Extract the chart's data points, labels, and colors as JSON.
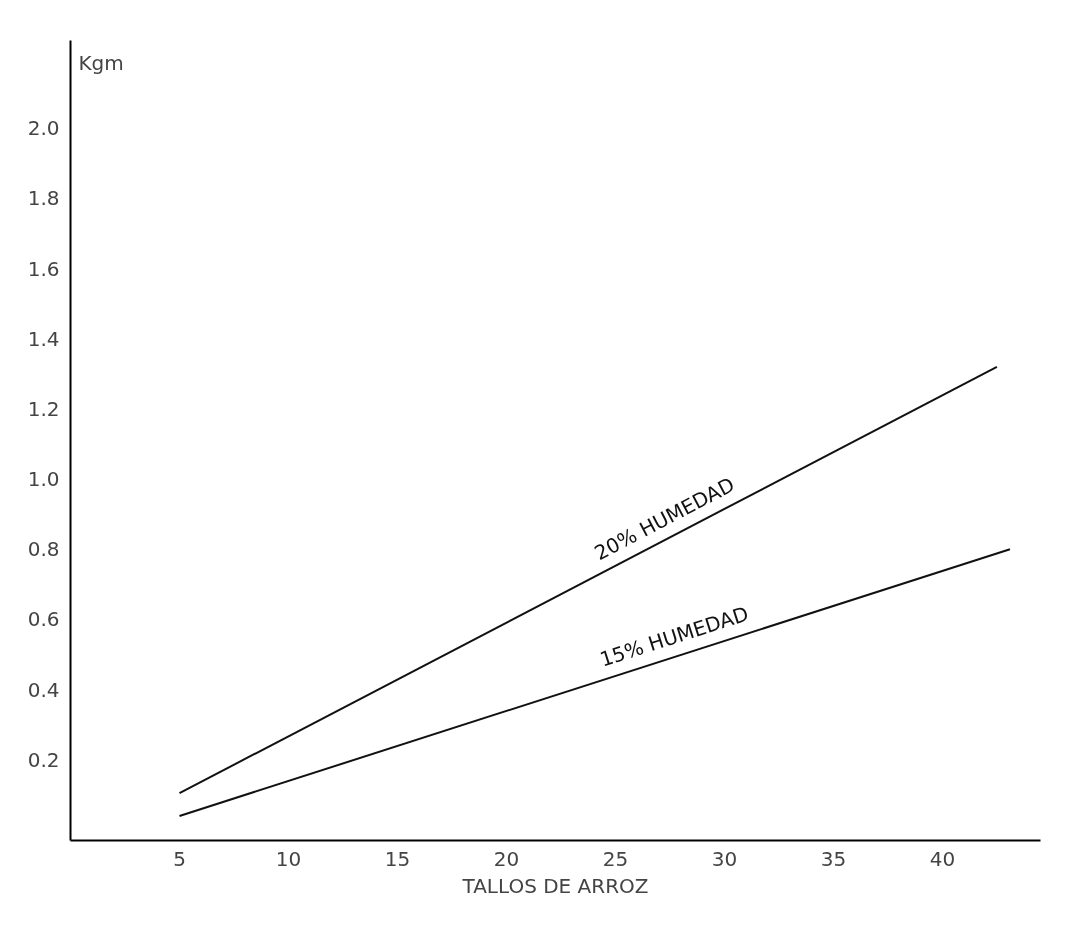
{
  "chart_data": {
    "type": "line",
    "xlabel": "TALLOS DE ARROZ",
    "ylabel": "Kgm",
    "xlim": [
      0,
      44.5
    ],
    "ylim": [
      -0.03,
      2.25
    ],
    "xticks": [
      5,
      10,
      15,
      20,
      25,
      30,
      35,
      40
    ],
    "yticks": [
      {
        "value": 0.2,
        "label": "0.2"
      },
      {
        "value": 0.4,
        "label": "0.4"
      },
      {
        "value": 0.6,
        "label": "0.6"
      },
      {
        "value": 0.8,
        "label": "0.8"
      },
      {
        "value": 1.0,
        "label": "1.0"
      },
      {
        "value": 1.2,
        "label": "1.2"
      },
      {
        "value": 1.4,
        "label": "1.4"
      },
      {
        "value": 1.6,
        "label": "1.6"
      },
      {
        "value": 1.8,
        "label": "1.8"
      },
      {
        "value": 2.0,
        "label": "2.0"
      }
    ],
    "grid": false,
    "marker": "none",
    "line_style": "solid",
    "series": [
      {
        "name": "20% HUMEDAD",
        "color": "#111111",
        "x": [
          5,
          42.5
        ],
        "values": [
          0.105,
          1.32
        ]
      },
      {
        "name": "15% HUMEDAD",
        "color": "#111111",
        "x": [
          5,
          43.1
        ],
        "values": [
          0.04,
          0.8
        ]
      }
    ]
  }
}
